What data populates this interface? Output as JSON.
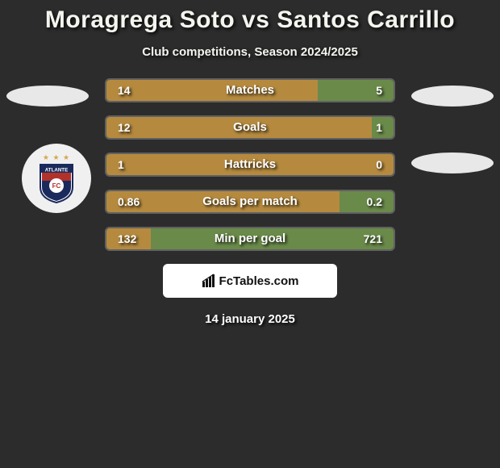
{
  "title": "Moragrega Soto vs Santos Carrillo",
  "subtitle": "Club competitions, Season 2024/2025",
  "date": "14 january 2025",
  "fctables_label": "FcTables.com",
  "colors": {
    "background": "#2c2c2c",
    "left_bar": "#b58a3f",
    "right_bar": "#6a8a4a",
    "ellipse": "#e8e8e8",
    "badge_bg": "#f0f0f0",
    "text": "#ffffff"
  },
  "player_left": {
    "team_badge": "Atlante"
  },
  "bars": [
    {
      "label": "Matches",
      "left_val": "14",
      "right_val": "5",
      "left_pct": 73.7,
      "right_pct": 26.3
    },
    {
      "label": "Goals",
      "left_val": "12",
      "right_val": "1",
      "left_pct": 92.3,
      "right_pct": 7.7
    },
    {
      "label": "Hattricks",
      "left_val": "1",
      "right_val": "0",
      "left_pct": 100,
      "right_pct": 0
    },
    {
      "label": "Goals per match",
      "left_val": "0.86",
      "right_val": "0.2",
      "left_pct": 81.1,
      "right_pct": 18.9
    },
    {
      "label": "Min per goal",
      "left_val": "132",
      "right_val": "721",
      "left_pct": 15.5,
      "right_pct": 84.5
    }
  ]
}
